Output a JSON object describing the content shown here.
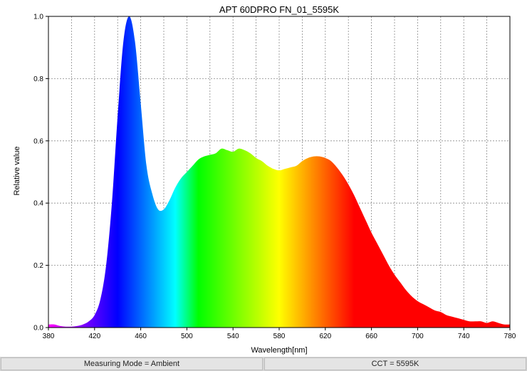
{
  "chart_data": {
    "type": "area",
    "title": "APT 60DPRO FN_01_5595K",
    "xlabel": "Wavelength[nm]",
    "ylabel": "Relative value",
    "xlim": [
      380,
      780
    ],
    "ylim": [
      0,
      1.0
    ],
    "x_ticks": [
      "380",
      "420",
      "460",
      "500",
      "540",
      "580",
      "620",
      "660",
      "700",
      "740",
      "780"
    ],
    "y_ticks": [
      "0.0",
      "0.2",
      "0.4",
      "0.6",
      "0.8",
      "1.0"
    ],
    "grid": true,
    "fill": "visible-spectrum colors by wavelength",
    "x": [
      380,
      385,
      390,
      395,
      400,
      405,
      410,
      415,
      420,
      425,
      430,
      435,
      440,
      445,
      450,
      455,
      460,
      465,
      470,
      475,
      480,
      485,
      490,
      495,
      500,
      505,
      510,
      515,
      520,
      525,
      530,
      535,
      540,
      545,
      550,
      555,
      560,
      565,
      570,
      575,
      580,
      585,
      590,
      595,
      600,
      605,
      610,
      615,
      620,
      625,
      630,
      635,
      640,
      645,
      650,
      655,
      660,
      665,
      670,
      675,
      680,
      685,
      690,
      695,
      700,
      705,
      710,
      715,
      720,
      725,
      730,
      735,
      740,
      745,
      750,
      755,
      760,
      765,
      770,
      775,
      780
    ],
    "values": [
      0.01,
      0.01,
      0.005,
      0.003,
      0.003,
      0.005,
      0.01,
      0.02,
      0.04,
      0.09,
      0.2,
      0.4,
      0.68,
      0.92,
      1.0,
      0.92,
      0.72,
      0.52,
      0.43,
      0.38,
      0.38,
      0.41,
      0.45,
      0.48,
      0.5,
      0.52,
      0.54,
      0.55,
      0.555,
      0.56,
      0.575,
      0.57,
      0.565,
      0.575,
      0.57,
      0.56,
      0.545,
      0.535,
      0.52,
      0.51,
      0.505,
      0.51,
      0.515,
      0.52,
      0.535,
      0.545,
      0.55,
      0.55,
      0.545,
      0.535,
      0.515,
      0.49,
      0.46,
      0.425,
      0.385,
      0.345,
      0.305,
      0.27,
      0.235,
      0.2,
      0.17,
      0.145,
      0.12,
      0.1,
      0.085,
      0.075,
      0.065,
      0.055,
      0.05,
      0.04,
      0.035,
      0.03,
      0.025,
      0.02,
      0.02,
      0.02,
      0.015,
      0.02,
      0.015,
      0.01,
      0.01
    ]
  },
  "status_bar": {
    "measuring_mode": "Measuring Mode = Ambient",
    "cct": "CCT = 5595K"
  }
}
